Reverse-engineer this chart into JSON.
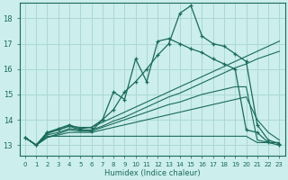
{
  "xlabel": "Humidex (Indice chaleur)",
  "bg_color": "#cceeed",
  "grid_color": "#aad8d5",
  "line_color": "#1a6b5a",
  "xlim": [
    -0.5,
    23.5
  ],
  "ylim": [
    12.6,
    18.6
  ],
  "yticks": [
    13,
    14,
    15,
    16,
    17,
    18
  ],
  "xticks": [
    0,
    1,
    2,
    3,
    4,
    5,
    6,
    7,
    8,
    9,
    10,
    11,
    12,
    13,
    14,
    15,
    16,
    17,
    18,
    19,
    20,
    21,
    22,
    23
  ],
  "curves": [
    {
      "x": [
        0,
        1,
        2,
        3,
        4,
        5,
        6,
        7,
        8,
        9,
        10,
        11,
        12,
        13,
        14,
        15,
        16,
        17,
        18,
        19,
        20,
        21,
        22,
        23
      ],
      "y": [
        13.3,
        13.0,
        13.35,
        13.35,
        13.35,
        13.35,
        13.35,
        13.35,
        13.35,
        13.35,
        13.35,
        13.35,
        13.35,
        13.35,
        13.35,
        13.35,
        13.35,
        13.35,
        13.35,
        13.35,
        13.35,
        13.1,
        13.1,
        13.1
      ],
      "has_markers": false,
      "lw": 0.8
    },
    {
      "x": [
        0,
        1,
        2,
        3,
        4,
        5,
        6,
        7,
        8,
        9,
        10,
        11,
        12,
        13,
        14,
        15,
        16,
        17,
        18,
        19,
        20,
        21,
        22,
        23
      ],
      "y": [
        13.3,
        13.0,
        13.3,
        13.4,
        13.5,
        13.5,
        13.5,
        13.6,
        13.7,
        13.8,
        13.9,
        14.0,
        14.1,
        14.2,
        14.3,
        14.4,
        14.5,
        14.6,
        14.7,
        14.8,
        14.9,
        14.0,
        13.5,
        13.2
      ],
      "has_markers": false,
      "lw": 0.8
    },
    {
      "x": [
        0,
        1,
        2,
        3,
        4,
        5,
        6,
        7,
        8,
        9,
        10,
        11,
        12,
        13,
        14,
        15,
        16,
        17,
        18,
        19,
        20,
        21,
        22,
        23
      ],
      "y": [
        13.3,
        13.0,
        13.3,
        13.45,
        13.6,
        13.55,
        13.55,
        13.7,
        13.85,
        14.0,
        14.15,
        14.3,
        14.45,
        14.6,
        14.7,
        14.85,
        15.0,
        15.1,
        15.2,
        15.3,
        15.3,
        13.2,
        13.1,
        13.1
      ],
      "has_markers": false,
      "lw": 0.8
    },
    {
      "x": [
        0,
        1,
        2,
        3,
        4,
        5,
        6,
        7,
        8,
        9,
        10,
        11,
        12,
        13,
        14,
        15,
        16,
        17,
        18,
        19,
        20,
        21,
        22,
        23
      ],
      "y": [
        13.3,
        13.0,
        13.4,
        13.5,
        13.65,
        13.6,
        13.6,
        13.75,
        13.95,
        14.1,
        14.3,
        14.5,
        14.7,
        14.9,
        15.05,
        15.25,
        15.45,
        15.65,
        15.85,
        16.05,
        16.2,
        16.4,
        16.55,
        16.7
      ],
      "has_markers": false,
      "lw": 0.8
    },
    {
      "x": [
        0,
        1,
        2,
        3,
        4,
        5,
        6,
        7,
        8,
        9,
        10,
        11,
        12,
        13,
        14,
        15,
        16,
        17,
        18,
        19,
        20,
        21,
        22,
        23
      ],
      "y": [
        13.3,
        13.0,
        13.45,
        13.6,
        13.75,
        13.7,
        13.7,
        13.9,
        14.1,
        14.3,
        14.5,
        14.7,
        14.9,
        15.1,
        15.3,
        15.5,
        15.7,
        15.9,
        16.1,
        16.3,
        16.5,
        16.7,
        16.9,
        17.1
      ],
      "has_markers": false,
      "lw": 0.8
    },
    {
      "x": [
        0,
        1,
        2,
        3,
        4,
        5,
        6,
        7,
        8,
        9,
        10,
        11,
        12,
        13,
        14,
        15,
        16,
        17,
        18,
        19,
        20,
        21,
        22,
        23
      ],
      "y": [
        13.3,
        13.0,
        13.5,
        13.6,
        13.75,
        13.6,
        13.55,
        14.0,
        14.4,
        15.1,
        15.5,
        16.0,
        16.55,
        17.0,
        18.2,
        18.5,
        17.3,
        17.0,
        16.9,
        16.6,
        16.3,
        13.8,
        13.2,
        13.05
      ],
      "has_markers": true,
      "lw": 0.9
    },
    {
      "x": [
        0,
        1,
        2,
        3,
        4,
        5,
        6,
        7,
        8,
        9,
        10,
        11,
        12,
        13,
        14,
        15,
        16,
        17,
        18,
        19,
        20,
        21,
        22,
        23
      ],
      "y": [
        13.3,
        13.0,
        13.5,
        13.65,
        13.8,
        13.65,
        13.7,
        14.0,
        15.1,
        14.8,
        16.4,
        15.5,
        17.1,
        17.2,
        17.0,
        16.8,
        16.65,
        16.4,
        16.2,
        16.0,
        13.6,
        13.5,
        13.1,
        13.0
      ],
      "has_markers": true,
      "lw": 0.9
    }
  ]
}
